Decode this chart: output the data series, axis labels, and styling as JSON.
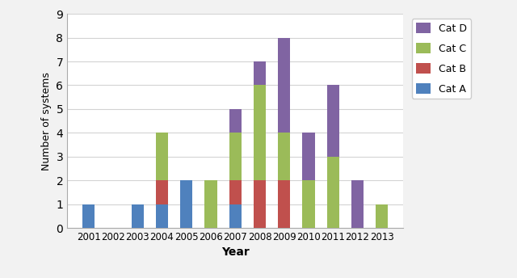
{
  "years": [
    2001,
    2002,
    2003,
    2004,
    2005,
    2006,
    2007,
    2008,
    2009,
    2010,
    2011,
    2012,
    2013
  ],
  "cat_a": [
    1,
    0,
    1,
    1,
    2,
    0,
    1,
    0,
    0,
    0,
    0,
    0,
    0
  ],
  "cat_b": [
    0,
    0,
    0,
    1,
    0,
    0,
    1,
    2,
    2,
    0,
    0,
    0,
    0
  ],
  "cat_c": [
    0,
    0,
    0,
    2,
    0,
    2,
    2,
    4,
    2,
    2,
    3,
    0,
    1
  ],
  "cat_d": [
    0,
    0,
    0,
    0,
    0,
    0,
    1,
    1,
    4,
    2,
    3,
    2,
    0
  ],
  "color_a": "#4F81BD",
  "color_b": "#C0504D",
  "color_c": "#9BBB59",
  "color_d": "#8064A2",
  "xlabel": "Year",
  "ylabel": "Number of systems",
  "ylim": [
    0,
    9
  ],
  "yticks": [
    0,
    1,
    2,
    3,
    4,
    5,
    6,
    7,
    8,
    9
  ],
  "figsize": [
    6.4,
    3.44
  ],
  "dpi": 100,
  "bar_width": 0.5,
  "bg_color": "#F2F2F2",
  "plot_bg_color": "#FFFFFF",
  "grid_color": "#D3D3D3"
}
